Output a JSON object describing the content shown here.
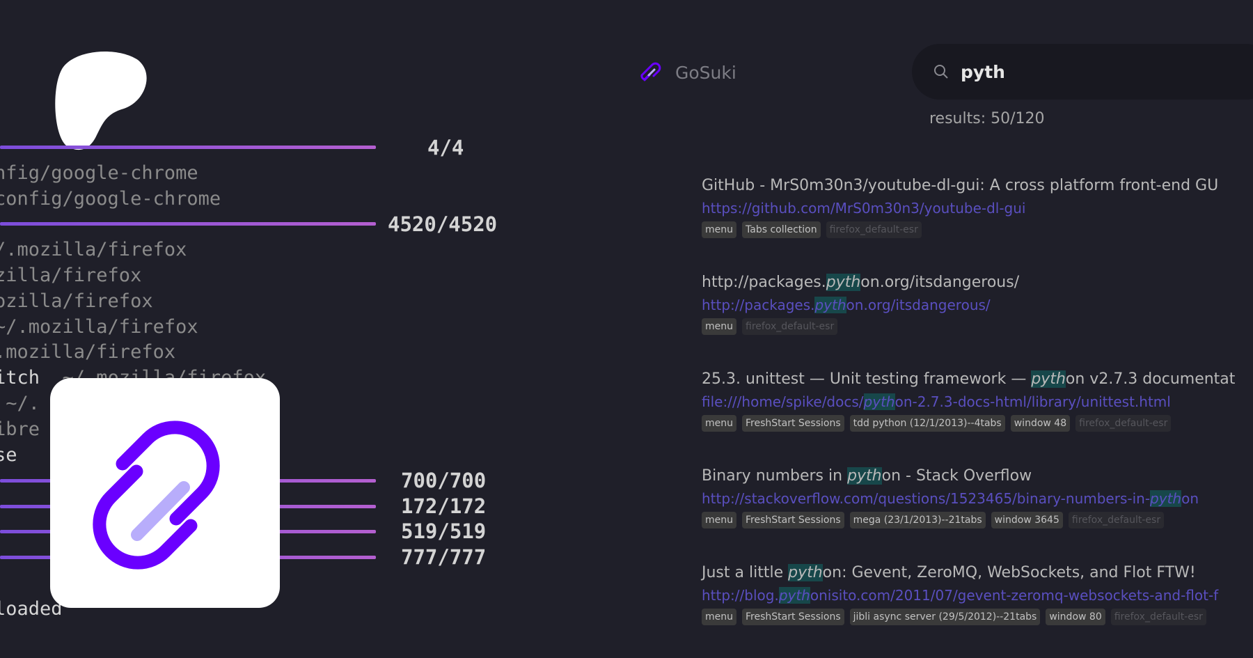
{
  "terminal": {
    "lines": [
      {
        "pre": "",
        "bold": "",
        "rest": "nfig/google-chrome"
      },
      {
        "pre": "",
        "bold": "",
        "rest": "config/google-chrome"
      },
      {
        "pre": "",
        "bold": "",
        "rest": "/.mozilla/firefox"
      },
      {
        "pre": "",
        "bold": "",
        "rest": "zilla/firefox"
      },
      {
        "pre": "",
        "bold": "",
        "rest": "ozilla/firefox"
      },
      {
        "pre": "",
        "bold": "",
        "rest": "~/.mozilla/firefox"
      },
      {
        "pre": "",
        "bold": "",
        "rest": ".mozilla/firefox"
      },
      {
        "pre": "",
        "bold": "itch",
        "rest": "  ~/.mozilla/firefox"
      },
      {
        "pre": "",
        "bold": "",
        "rest": " ~/."
      },
      {
        "pre": "",
        "bold": "",
        "rest": "ibre"
      },
      {
        "pre": "",
        "bold": "se",
        "rest": ""
      },
      {
        "pre": "",
        "bold": "loaded",
        "rest": ""
      }
    ],
    "counts": [
      "4/4",
      "4520/4520",
      "700/700",
      "172/172",
      "519/519",
      "777/777"
    ],
    "bar_fill_percent": [
      100,
      100,
      100,
      100,
      100,
      100
    ]
  },
  "app": {
    "name": "GoSuki",
    "accent": "#6a00ff"
  },
  "search": {
    "value": "pyth",
    "results_label": "results: 50/120"
  },
  "results": [
    {
      "title": [
        {
          "t": "GitHub - MrS0m30n3/youtube-dl-gui: A cross platform front-end GU"
        }
      ],
      "url": [
        {
          "t": "https://github.com/MrS0m30n3/youtube-dl-gui"
        }
      ],
      "tags": [
        "menu",
        "Tabs collection"
      ],
      "source": "firefox_default-esr"
    },
    {
      "title": [
        {
          "t": "http://packages."
        },
        {
          "t": "pyth",
          "hl": true
        },
        {
          "t": "on.org/itsdangerous/"
        }
      ],
      "url": [
        {
          "t": "http://packages."
        },
        {
          "t": "pyth",
          "hl": true
        },
        {
          "t": "on.org/itsdangerous/"
        }
      ],
      "tags": [
        "menu"
      ],
      "source": "firefox_default-esr"
    },
    {
      "title": [
        {
          "t": "25.3. unittest — Unit testing framework — "
        },
        {
          "t": "pyth",
          "hl": true
        },
        {
          "t": "on v2.7.3 documentat"
        }
      ],
      "url": [
        {
          "t": "file:///home/spike/docs/"
        },
        {
          "t": "pyth",
          "hl": true
        },
        {
          "t": "on-2.7.3-docs-html/library/unittest.html"
        }
      ],
      "tags": [
        "menu",
        "FreshStart Sessions",
        "tdd python (12/1/2013)--4tabs",
        "window 48"
      ],
      "source": "firefox_default-esr"
    },
    {
      "title": [
        {
          "t": "Binary numbers in "
        },
        {
          "t": "pyth",
          "hl": true
        },
        {
          "t": "on - Stack Overflow"
        }
      ],
      "url": [
        {
          "t": "http://stackoverflow.com/questions/1523465/binary-numbers-in-"
        },
        {
          "t": "pyth",
          "hl": true
        },
        {
          "t": "on"
        }
      ],
      "tags": [
        "menu",
        "FreshStart Sessions",
        "mega (23/1/2013)--21tabs",
        "window 3645"
      ],
      "source": "firefox_default-esr"
    },
    {
      "title": [
        {
          "t": "Just a little "
        },
        {
          "t": "pyth",
          "hl": true
        },
        {
          "t": "on: Gevent, ZeroMQ, WebSockets, and Flot FTW!"
        }
      ],
      "url": [
        {
          "t": "http://blog."
        },
        {
          "t": "pyth",
          "hl": true
        },
        {
          "t": "onisito.com/2011/07/gevent-zeromq-websockets-and-flot-f"
        }
      ],
      "tags": [
        "menu",
        "FreshStart Sessions",
        "jibli async server (29/5/2012)--21tabs",
        "window 80"
      ],
      "source": "firefox_default-esr"
    }
  ]
}
